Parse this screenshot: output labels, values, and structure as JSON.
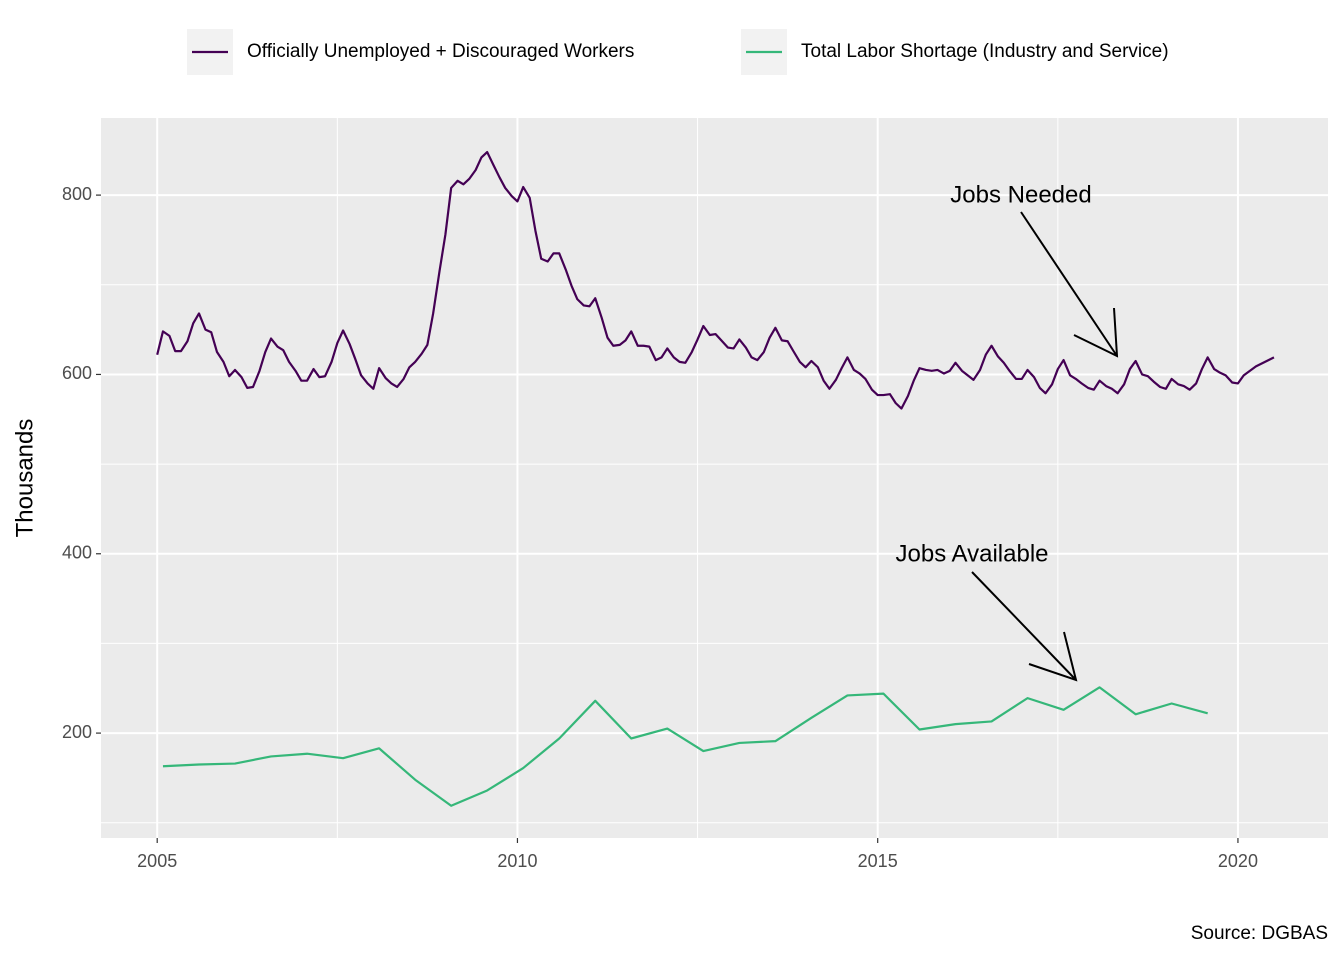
{
  "chart_data": {
    "type": "line",
    "y_label": "Thousands",
    "caption": "Source: DGBAS",
    "annotations": [
      "Jobs Needed",
      "Jobs Available"
    ],
    "xlim": [
      2004.22,
      2021.25
    ],
    "xticks": [
      2005,
      2010,
      2015,
      2020
    ],
    "xminor": [
      2007.5,
      2012.5,
      2017.5
    ],
    "ylim": [
      83,
      886
    ],
    "yticks": [
      200,
      400,
      600,
      800
    ],
    "yminor": [
      100,
      300,
      500,
      700
    ],
    "grid": true,
    "legend": "top",
    "series": [
      {
        "name": "Officially Unemployed + Discouraged Workers",
        "color": "#440154",
        "x": [
          2005.0,
          2005.08,
          2005.17,
          2005.25,
          2005.33,
          2005.42,
          2005.5,
          2005.58,
          2005.67,
          2005.75,
          2005.83,
          2005.92,
          2006.0,
          2006.08,
          2006.17,
          2006.25,
          2006.33,
          2006.42,
          2006.5,
          2006.58,
          2006.67,
          2006.75,
          2006.83,
          2006.92,
          2007.0,
          2007.08,
          2007.17,
          2007.25,
          2007.33,
          2007.42,
          2007.5,
          2007.58,
          2007.67,
          2007.75,
          2007.83,
          2007.92,
          2008.0,
          2008.08,
          2008.17,
          2008.25,
          2008.33,
          2008.42,
          2008.5,
          2008.58,
          2008.67,
          2008.75,
          2008.83,
          2008.92,
          2009.0,
          2009.08,
          2009.17,
          2009.25,
          2009.33,
          2009.42,
          2009.5,
          2009.58,
          2009.67,
          2009.75,
          2009.83,
          2009.92,
          2010.0,
          2010.08,
          2010.17,
          2010.25,
          2010.33,
          2010.42,
          2010.5,
          2010.58,
          2010.67,
          2010.75,
          2010.83,
          2010.92,
          2011.0,
          2011.08,
          2011.17,
          2011.25,
          2011.33,
          2011.42,
          2011.5,
          2011.58,
          2011.67,
          2011.75,
          2011.83,
          2011.92,
          2012.0,
          2012.08,
          2012.17,
          2012.25,
          2012.33,
          2012.42,
          2012.5,
          2012.58,
          2012.67,
          2012.75,
          2012.83,
          2012.92,
          2013.0,
          2013.08,
          2013.17,
          2013.25,
          2013.33,
          2013.42,
          2013.5,
          2013.58,
          2013.67,
          2013.75,
          2013.83,
          2013.92,
          2014.0,
          2014.08,
          2014.17,
          2014.25,
          2014.33,
          2014.42,
          2014.5,
          2014.58,
          2014.67,
          2014.75,
          2014.83,
          2014.92,
          2015.0,
          2015.08,
          2015.17,
          2015.25,
          2015.33,
          2015.42,
          2015.5,
          2015.58,
          2015.67,
          2015.75,
          2015.83,
          2015.92,
          2016.0,
          2016.08,
          2016.17,
          2016.25,
          2016.33,
          2016.42,
          2016.5,
          2016.58,
          2016.67,
          2016.75,
          2016.83,
          2016.92,
          2017.0,
          2017.08,
          2017.17,
          2017.25,
          2017.33,
          2017.42,
          2017.5,
          2017.58,
          2017.67,
          2017.75,
          2017.83,
          2017.92,
          2018.0,
          2018.08,
          2018.17,
          2018.25,
          2018.33,
          2018.42,
          2018.5,
          2018.58,
          2018.67,
          2018.75,
          2018.83,
          2018.92,
          2019.0,
          2019.08,
          2019.17,
          2019.25,
          2019.33,
          2019.42,
          2019.5,
          2019.58,
          2019.67,
          2019.75,
          2019.83,
          2019.92,
          2020.0,
          2020.08,
          2020.25,
          2020.5
        ],
        "values": [
          622,
          648,
          643,
          626,
          626,
          637,
          657,
          668,
          650,
          647,
          625,
          614,
          598,
          605,
          597,
          585,
          586,
          604,
          625,
          640,
          631,
          627,
          614,
          604,
          593,
          593,
          606,
          597,
          598,
          614,
          635,
          649,
          634,
          617,
          599,
          590,
          584,
          607,
          596,
          590,
          586,
          595,
          608,
          614,
          623,
          633,
          668,
          716,
          756,
          808,
          816,
          812,
          818,
          828,
          842,
          848,
          833,
          820,
          808,
          799,
          793,
          809,
          797,
          760,
          729,
          726,
          735,
          735,
          717,
          699,
          684,
          677,
          676,
          685,
          663,
          641,
          632,
          633,
          638,
          648,
          632,
          632,
          631,
          616,
          619,
          629,
          619,
          614,
          613,
          625,
          639,
          654,
          644,
          645,
          638,
          630,
          629,
          639,
          630,
          619,
          616,
          625,
          641,
          652,
          638,
          637,
          626,
          614,
          608,
          615,
          608,
          593,
          584,
          594,
          607,
          619,
          605,
          601,
          595,
          583,
          577,
          577,
          578,
          568,
          562,
          576,
          593,
          607,
          605,
          604,
          605,
          601,
          604,
          613,
          604,
          599,
          594,
          605,
          622,
          632,
          620,
          613,
          604,
          595,
          595,
          605,
          597,
          585,
          579,
          589,
          606,
          616,
          599,
          595,
          590,
          585,
          583,
          593,
          587,
          584,
          579,
          589,
          606,
          615,
          600,
          598,
          592,
          586,
          584,
          595,
          589,
          587,
          583,
          590,
          606,
          619,
          606,
          602,
          599,
          591,
          590,
          599,
          609,
          619
        ]
      },
      {
        "name": "Total Labor Shortage (Industry and Service)",
        "color": "#35b779",
        "x": [
          2005.08,
          2005.58,
          2006.08,
          2006.58,
          2007.08,
          2007.58,
          2008.08,
          2008.58,
          2009.08,
          2009.58,
          2010.08,
          2010.58,
          2011.08,
          2011.58,
          2012.08,
          2012.58,
          2013.08,
          2013.58,
          2014.08,
          2014.58,
          2015.08,
          2015.58,
          2016.08,
          2016.58,
          2017.08,
          2017.58,
          2018.08,
          2018.58,
          2019.08,
          2019.58
        ],
        "values": [
          163,
          165,
          166,
          174,
          177,
          172,
          183,
          148,
          119,
          136,
          161,
          194,
          236,
          194,
          205,
          180,
          189,
          191,
          217,
          242,
          244,
          204,
          210,
          213,
          239,
          226,
          251,
          221,
          233,
          222
        ]
      }
    ]
  }
}
